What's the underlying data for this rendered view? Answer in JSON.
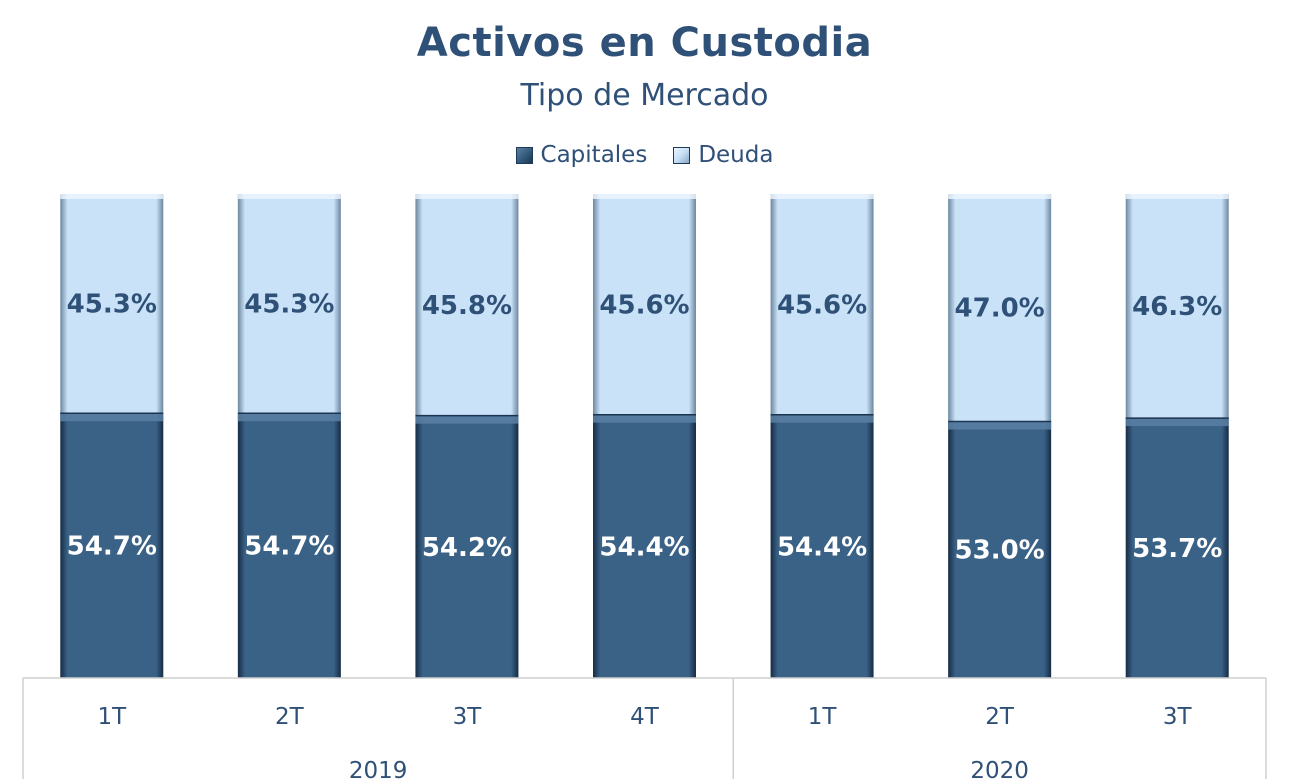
{
  "colors": {
    "capitales": "#365d80",
    "deuda": "#c9e2f8",
    "text": "#2f5077"
  },
  "chart_data": {
    "type": "bar",
    "stacked": true,
    "title": "Activos en Custodia",
    "subtitle": "Tipo de Mercado",
    "categories": [
      "1T",
      "2T",
      "3T",
      "4T",
      "1T",
      "2T",
      "3T"
    ],
    "groups": [
      {
        "label": "2019",
        "count": 4
      },
      {
        "label": "2020",
        "count": 3
      }
    ],
    "series": [
      {
        "name": "Capitales",
        "values": [
          54.7,
          54.7,
          54.2,
          54.4,
          54.4,
          53.0,
          53.7
        ],
        "labels": [
          "54.7%",
          "54.7%",
          "54.2%",
          "54.4%",
          "54.4%",
          "53.0%",
          "53.7%"
        ]
      },
      {
        "name": "Deuda",
        "values": [
          45.3,
          45.3,
          45.8,
          45.6,
          45.6,
          47.0,
          46.3
        ],
        "labels": [
          "45.3%",
          "45.3%",
          "45.8%",
          "45.6%",
          "45.6%",
          "47.0%",
          "46.3%"
        ]
      }
    ],
    "ylim": [
      0,
      100
    ],
    "legend": "top-center",
    "grid": false
  }
}
